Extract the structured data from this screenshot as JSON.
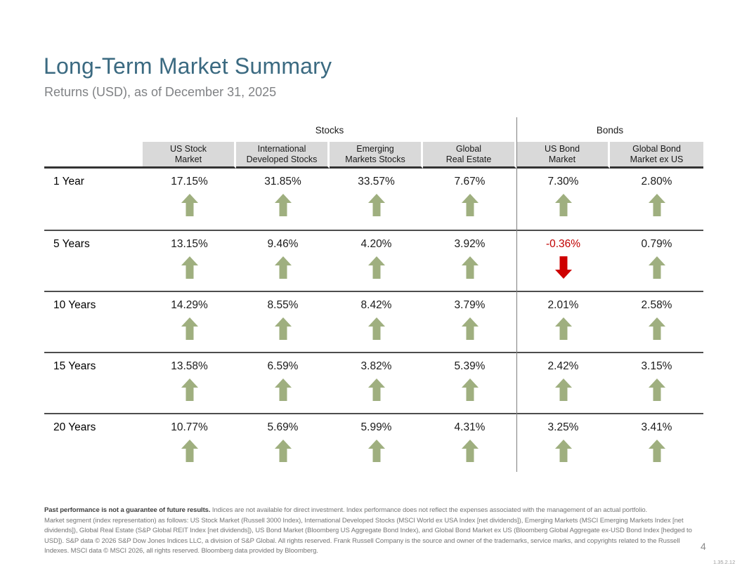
{
  "page": {
    "title": "Long-Term Market Summary",
    "subtitle": "Returns (USD), as of December 31, 2025",
    "page_number": "4",
    "tracking_number": "1.35.2.12"
  },
  "colors": {
    "title": "#3B6A81",
    "subtitle": "#808285",
    "header_bg": "#D9D9D9",
    "arrow_up": "#9FAF7F",
    "arrow_down": "#CE0000",
    "negative_text": "#C00000"
  },
  "table": {
    "groups": [
      {
        "label": "Stocks",
        "span": 4
      },
      {
        "label": "Bonds",
        "span": 2
      }
    ],
    "columns": [
      {
        "line1": "US Stock",
        "line2": "Market"
      },
      {
        "line1": "International",
        "line2": "Developed Stocks"
      },
      {
        "line1": "Emerging",
        "line2": "Markets Stocks"
      },
      {
        "line1": "Global",
        "line2": "Real Estate"
      },
      {
        "line1": "US Bond",
        "line2": "Market"
      },
      {
        "line1": "Global Bond",
        "line2": "Market ex US"
      }
    ],
    "rows": [
      {
        "label": "1 Year",
        "values": [
          {
            "text": "17.15%",
            "dir": "up"
          },
          {
            "text": "31.85%",
            "dir": "up"
          },
          {
            "text": "33.57%",
            "dir": "up"
          },
          {
            "text": "7.67%",
            "dir": "up"
          },
          {
            "text": "7.30%",
            "dir": "up"
          },
          {
            "text": "2.80%",
            "dir": "up"
          }
        ]
      },
      {
        "label": "5 Years",
        "values": [
          {
            "text": "13.15%",
            "dir": "up"
          },
          {
            "text": "9.46%",
            "dir": "up"
          },
          {
            "text": "4.20%",
            "dir": "up"
          },
          {
            "text": "3.92%",
            "dir": "up"
          },
          {
            "text": "-0.36%",
            "dir": "down"
          },
          {
            "text": "0.79%",
            "dir": "up"
          }
        ]
      },
      {
        "label": "10 Years",
        "values": [
          {
            "text": "14.29%",
            "dir": "up"
          },
          {
            "text": "8.55%",
            "dir": "up"
          },
          {
            "text": "8.42%",
            "dir": "up"
          },
          {
            "text": "3.79%",
            "dir": "up"
          },
          {
            "text": "2.01%",
            "dir": "up"
          },
          {
            "text": "2.58%",
            "dir": "up"
          }
        ]
      },
      {
        "label": "15 Years",
        "values": [
          {
            "text": "13.58%",
            "dir": "up"
          },
          {
            "text": "6.59%",
            "dir": "up"
          },
          {
            "text": "3.82%",
            "dir": "up"
          },
          {
            "text": "5.39%",
            "dir": "up"
          },
          {
            "text": "2.42%",
            "dir": "up"
          },
          {
            "text": "3.15%",
            "dir": "up"
          }
        ]
      },
      {
        "label": "20 Years",
        "values": [
          {
            "text": "10.77%",
            "dir": "up"
          },
          {
            "text": "5.69%",
            "dir": "up"
          },
          {
            "text": "5.99%",
            "dir": "up"
          },
          {
            "text": "4.31%",
            "dir": "up"
          },
          {
            "text": "3.25%",
            "dir": "up"
          },
          {
            "text": "3.41%",
            "dir": "up"
          }
        ]
      }
    ]
  },
  "footer": {
    "line1_bold": "Past performance is not a guarantee of future results.",
    "line1_rest": " Indices are not available for direct investment. Index performance does not reflect the expenses associated with the management of an actual portfolio.",
    "lines": [
      "Market segment (index representation) as follows: US Stock Market (Russell 3000 Index), International Developed Stocks (MSCI World ex USA Index [net dividends]), Emerging Markets (MSCI Emerging Markets Index [net",
      "dividends]), Global Real Estate (S&P Global REIT Index [net dividends]), US Bond Market (Bloomberg US Aggregate Bond Index), and Global Bond Market ex US (Bloomberg Global Aggregate ex-USD Bond Index [hedged to",
      "USD]). S&P data © 2026 S&P Dow Jones Indices LLC, a division of S&P Global. All rights reserved. Frank Russell Company is the source and owner of the trademarks, service marks, and copyrights related to the Russell",
      "Indexes. MSCI data © MSCI 2026, all rights reserved. Bloomberg data provided by Bloomberg."
    ]
  }
}
